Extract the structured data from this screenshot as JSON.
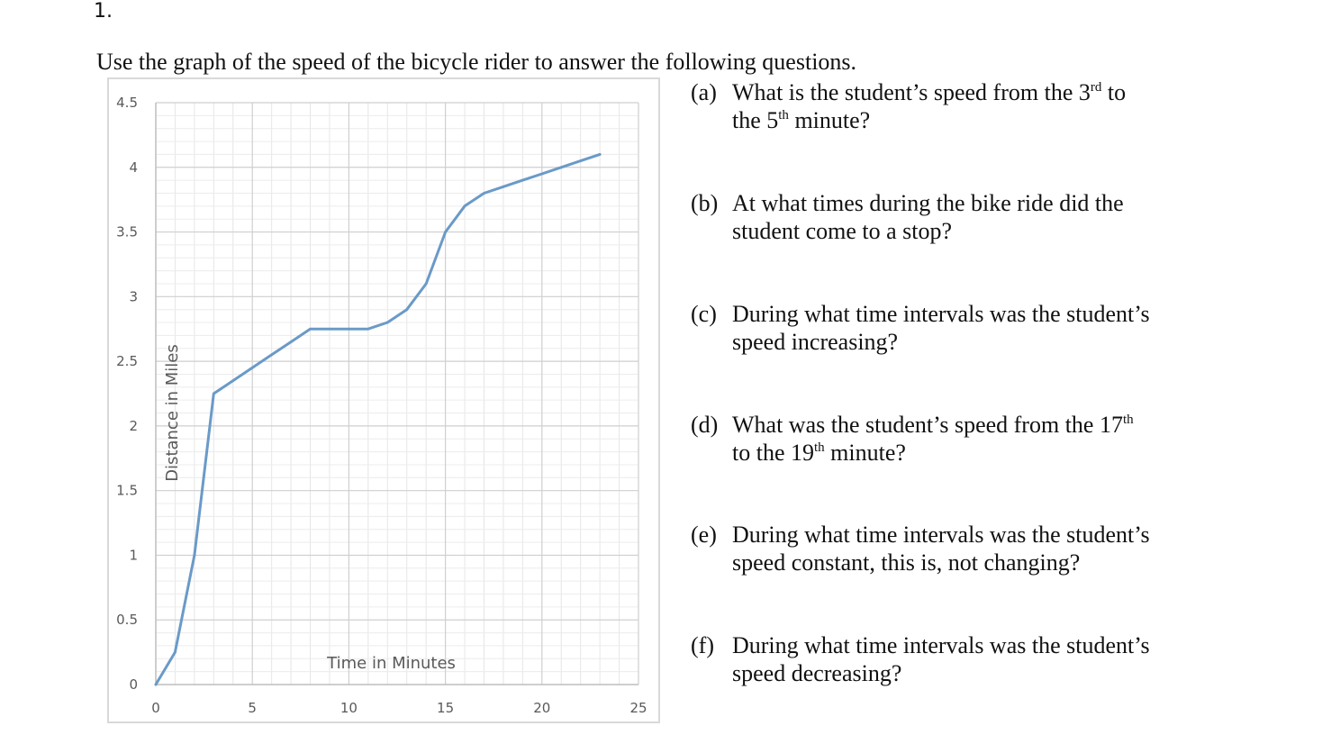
{
  "problem_number": "1.",
  "intro": "Use the graph of the speed of the bicycle rider to answer the following questions.",
  "chart_data": {
    "type": "line",
    "title": "",
    "xlabel": "Time in Minutes",
    "ylabel": "Distance in Miles",
    "xlim": [
      0,
      25
    ],
    "ylim": [
      0,
      4.5
    ],
    "x_ticks": [
      "0",
      "5",
      "10",
      "15",
      "20",
      "25"
    ],
    "y_ticks": [
      "0",
      "0.5",
      "1",
      "1.5",
      "2",
      "2.5",
      "3",
      "3.5",
      "4",
      "4.5"
    ],
    "grid": true,
    "line_color": "#6a9ac8",
    "series": [
      {
        "x": [
          0,
          1,
          2,
          3,
          4,
          5,
          6,
          7,
          8,
          9,
          10,
          11,
          12,
          13,
          14,
          15,
          16,
          17,
          18,
          19,
          20,
          21,
          22,
          23
        ],
        "y": [
          0,
          0.25,
          1,
          2.25,
          2.35,
          2.45,
          2.55,
          2.65,
          2.75,
          2.75,
          2.75,
          2.75,
          2.8,
          2.9,
          3.1,
          3.5,
          3.7,
          3.8,
          3.85,
          3.9,
          3.95,
          4.0,
          4.05,
          4.1
        ]
      }
    ]
  },
  "questions": [
    {
      "letter": "(a)",
      "line1": "What is the student’s speed from the 3",
      "sup1": "rd",
      "line1b": " to",
      "line2": "the 5",
      "sup2": "th",
      "line2b": "  minute?"
    },
    {
      "letter": "(b)",
      "line1": "At what times during the bike ride did the",
      "line2": "student come to a stop?"
    },
    {
      "letter": "(c)",
      "line1": "During what time intervals was the student’s",
      "line2": "speed increasing?"
    },
    {
      "letter": "(d)",
      "line1": "What was the student’s speed from the 17",
      "sup1": "th",
      "line2": "to the 19",
      "sup2": "th",
      "line2b": " minute?"
    },
    {
      "letter": "(e)",
      "line1": "During what time intervals was the student’s",
      "line2": "speed constant, this is, not changing?"
    },
    {
      "letter": "(f)",
      "line1": "During what time intervals was the student’s",
      "line2": "speed decreasing?"
    }
  ]
}
